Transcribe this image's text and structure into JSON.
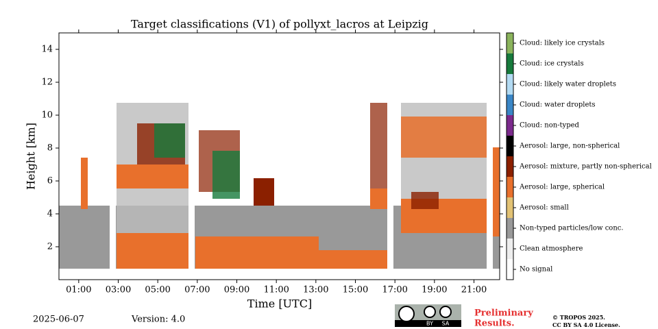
{
  "chart_data": {
    "type": "heatmap",
    "title": "Target classifications (V1) of pollyxt_lacros at Leipzig",
    "xlabel": "Time [UTC]",
    "ylabel": "Height [km]",
    "xlim": [
      0,
      22.3
    ],
    "ylim": [
      0,
      15
    ],
    "xticks": [
      {
        "value": 1,
        "label": "01:00"
      },
      {
        "value": 3,
        "label": "03:00"
      },
      {
        "value": 5,
        "label": "05:00"
      },
      {
        "value": 7,
        "label": "07:00"
      },
      {
        "value": 9,
        "label": "09:00"
      },
      {
        "value": 11,
        "label": "11:00"
      },
      {
        "value": 13,
        "label": "13:00"
      },
      {
        "value": 15,
        "label": "15:00"
      },
      {
        "value": 17,
        "label": "17:00"
      },
      {
        "value": 19,
        "label": "19:00"
      },
      {
        "value": 21,
        "label": "21:00"
      }
    ],
    "yticks": [
      2,
      4,
      6,
      8,
      10,
      12,
      14
    ],
    "classes": [
      {
        "name": "Cloud: likely ice crystals",
        "color": "#8ab35c"
      },
      {
        "name": "Cloud: ice crystals",
        "color": "#177a3c"
      },
      {
        "name": "Cloud: likely water droplets",
        "color": "#b2daf2"
      },
      {
        "name": "Cloud: water droplets",
        "color": "#3a86c6"
      },
      {
        "name": "Cloud: non-typed",
        "color": "#7b2a8c"
      },
      {
        "name": "Aerosol: large, non-spherical",
        "color": "#000000"
      },
      {
        "name": "Aerosol: mixture, partly non-spherical",
        "color": "#8b2000"
      },
      {
        "name": "Aerosol: large, spherical",
        "color": "#e8702c"
      },
      {
        "name": "Aerosol: small",
        "color": "#e2c274"
      },
      {
        "name": "Non-typed particles/low conc.",
        "color": "#999999"
      },
      {
        "name": "Clean atmosphere",
        "color": "#eeeeee"
      },
      {
        "name": "No signal",
        "color": "#ffffff"
      }
    ],
    "date": "2025-06-07",
    "version": "Version: 4.0",
    "badge": [
      "BY",
      "SA"
    ],
    "notice": [
      "Preliminary",
      "Results."
    ],
    "copyright": [
      "© TROPOS 2025.",
      "CC BY SA 4.0 License."
    ]
  }
}
